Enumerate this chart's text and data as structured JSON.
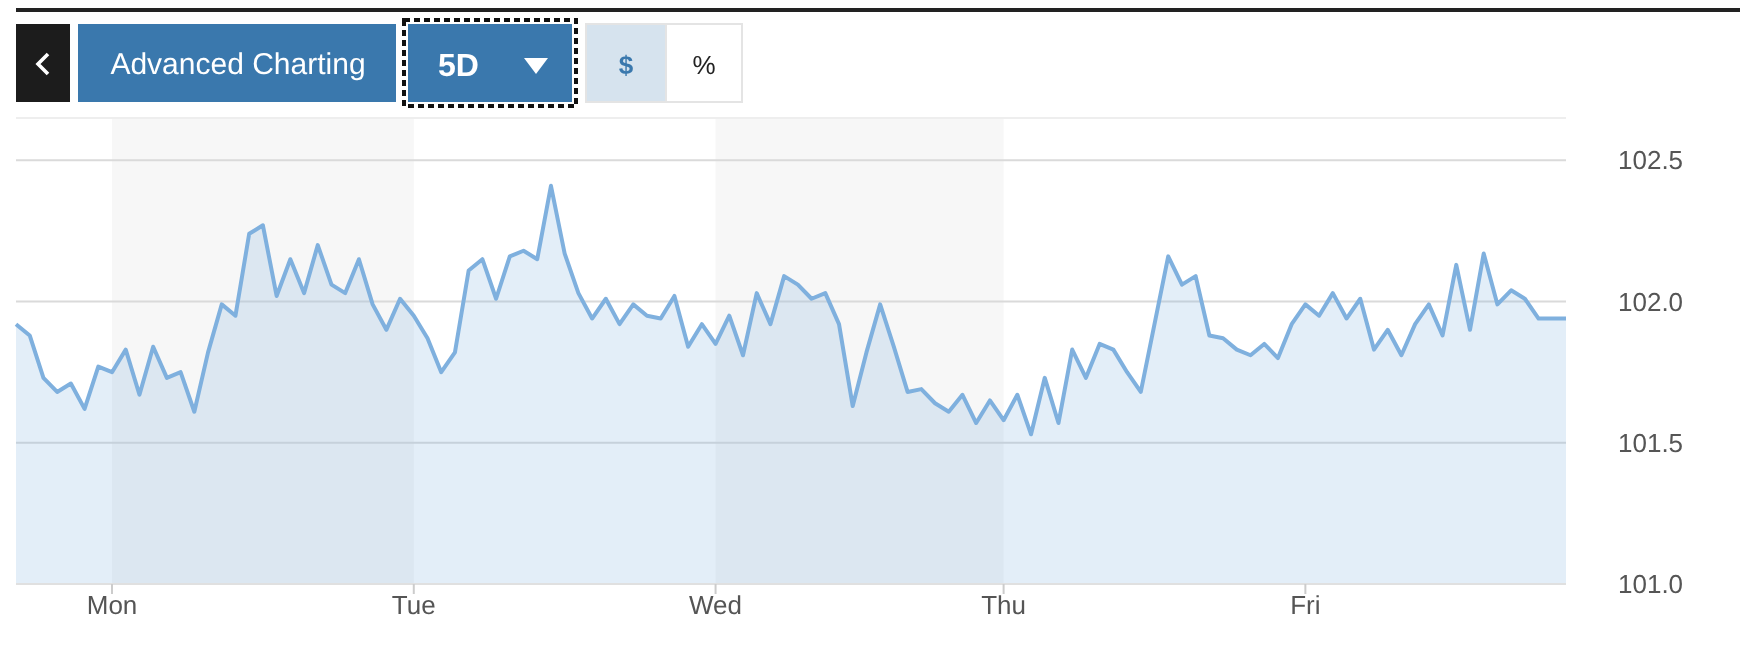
{
  "chart_data": {
    "type": "area",
    "annotations": [
      "Advanced Charting",
      "5D",
      "$",
      "%"
    ],
    "ylim": [
      101.0,
      102.65
    ],
    "categories": [
      null,
      null,
      null,
      null,
      null,
      null,
      null,
      "Mon",
      null,
      null,
      null,
      null,
      null,
      null,
      null,
      null,
      null,
      null,
      null,
      null,
      null,
      null,
      null,
      null,
      null,
      null,
      null,
      null,
      null,
      "Tue",
      null,
      null,
      null,
      null,
      null,
      null,
      null,
      null,
      null,
      null,
      null,
      null,
      null,
      null,
      null,
      null,
      null,
      null,
      null,
      null,
      null,
      "Wed",
      null,
      null,
      null,
      null,
      null,
      null,
      null,
      null,
      null,
      null,
      null,
      null,
      null,
      null,
      null,
      null,
      null,
      null,
      null,
      null,
      "Thu",
      null,
      null,
      null,
      null,
      null,
      null,
      null,
      null,
      null,
      null,
      null,
      null,
      null,
      null,
      null,
      null,
      null,
      null,
      null,
      null,
      null,
      "Fri",
      null,
      null,
      null,
      null,
      null,
      null,
      null,
      null,
      null,
      null,
      null,
      null,
      null,
      null,
      null,
      null,
      null,
      null,
      null
    ],
    "yticks": [
      {
        "value": 101,
        "label": "101.0"
      },
      {
        "value": 101.5,
        "label": "101.5"
      },
      {
        "value": 102,
        "label": "102.0"
      },
      {
        "value": 102.5,
        "label": "102.5"
      }
    ],
    "grid": "y",
    "bands": [
      {
        "axis": "x",
        "from": "Mon",
        "to": "Tue",
        "color": "#f7f7f7"
      },
      {
        "axis": "x",
        "from": "Wed",
        "to": "Thu",
        "color": "#f7f7f7"
      }
    ],
    "series": [
      {
        "color": "#7fb0de",
        "values": [
          101.92,
          101.88,
          101.73,
          101.68,
          101.71,
          101.62,
          101.77,
          101.75,
          101.83,
          101.67,
          101.84,
          101.73,
          101.75,
          101.61,
          101.82,
          101.99,
          101.95,
          102.24,
          102.27,
          102.02,
          102.15,
          102.03,
          102.2,
          102.06,
          102.03,
          102.15,
          101.99,
          101.9,
          102.01,
          101.95,
          101.87,
          101.75,
          101.82,
          102.11,
          102.15,
          102.01,
          102.16,
          102.18,
          102.15,
          102.41,
          102.17,
          102.03,
          101.94,
          102.01,
          101.92,
          101.99,
          101.95,
          101.94,
          102.02,
          101.84,
          101.92,
          101.85,
          101.95,
          101.81,
          102.03,
          101.92,
          102.09,
          102.06,
          102.01,
          102.03,
          101.92,
          101.63,
          101.82,
          101.99,
          101.84,
          101.68,
          101.69,
          101.64,
          101.61,
          101.67,
          101.57,
          101.65,
          101.58,
          101.67,
          101.53,
          101.73,
          101.57,
          101.83,
          101.73,
          101.85,
          101.83,
          101.75,
          101.68,
          101.92,
          102.16,
          102.06,
          102.09,
          101.88,
          101.87,
          101.83,
          101.81,
          101.85,
          101.8,
          101.92,
          101.99,
          101.95,
          102.03,
          101.94,
          102.01,
          101.83,
          101.9,
          101.81,
          101.92,
          101.99,
          101.88,
          102.13,
          101.9,
          102.17,
          101.99,
          102.04,
          102.01,
          101.94,
          101.94,
          101.94
        ]
      }
    ]
  }
}
